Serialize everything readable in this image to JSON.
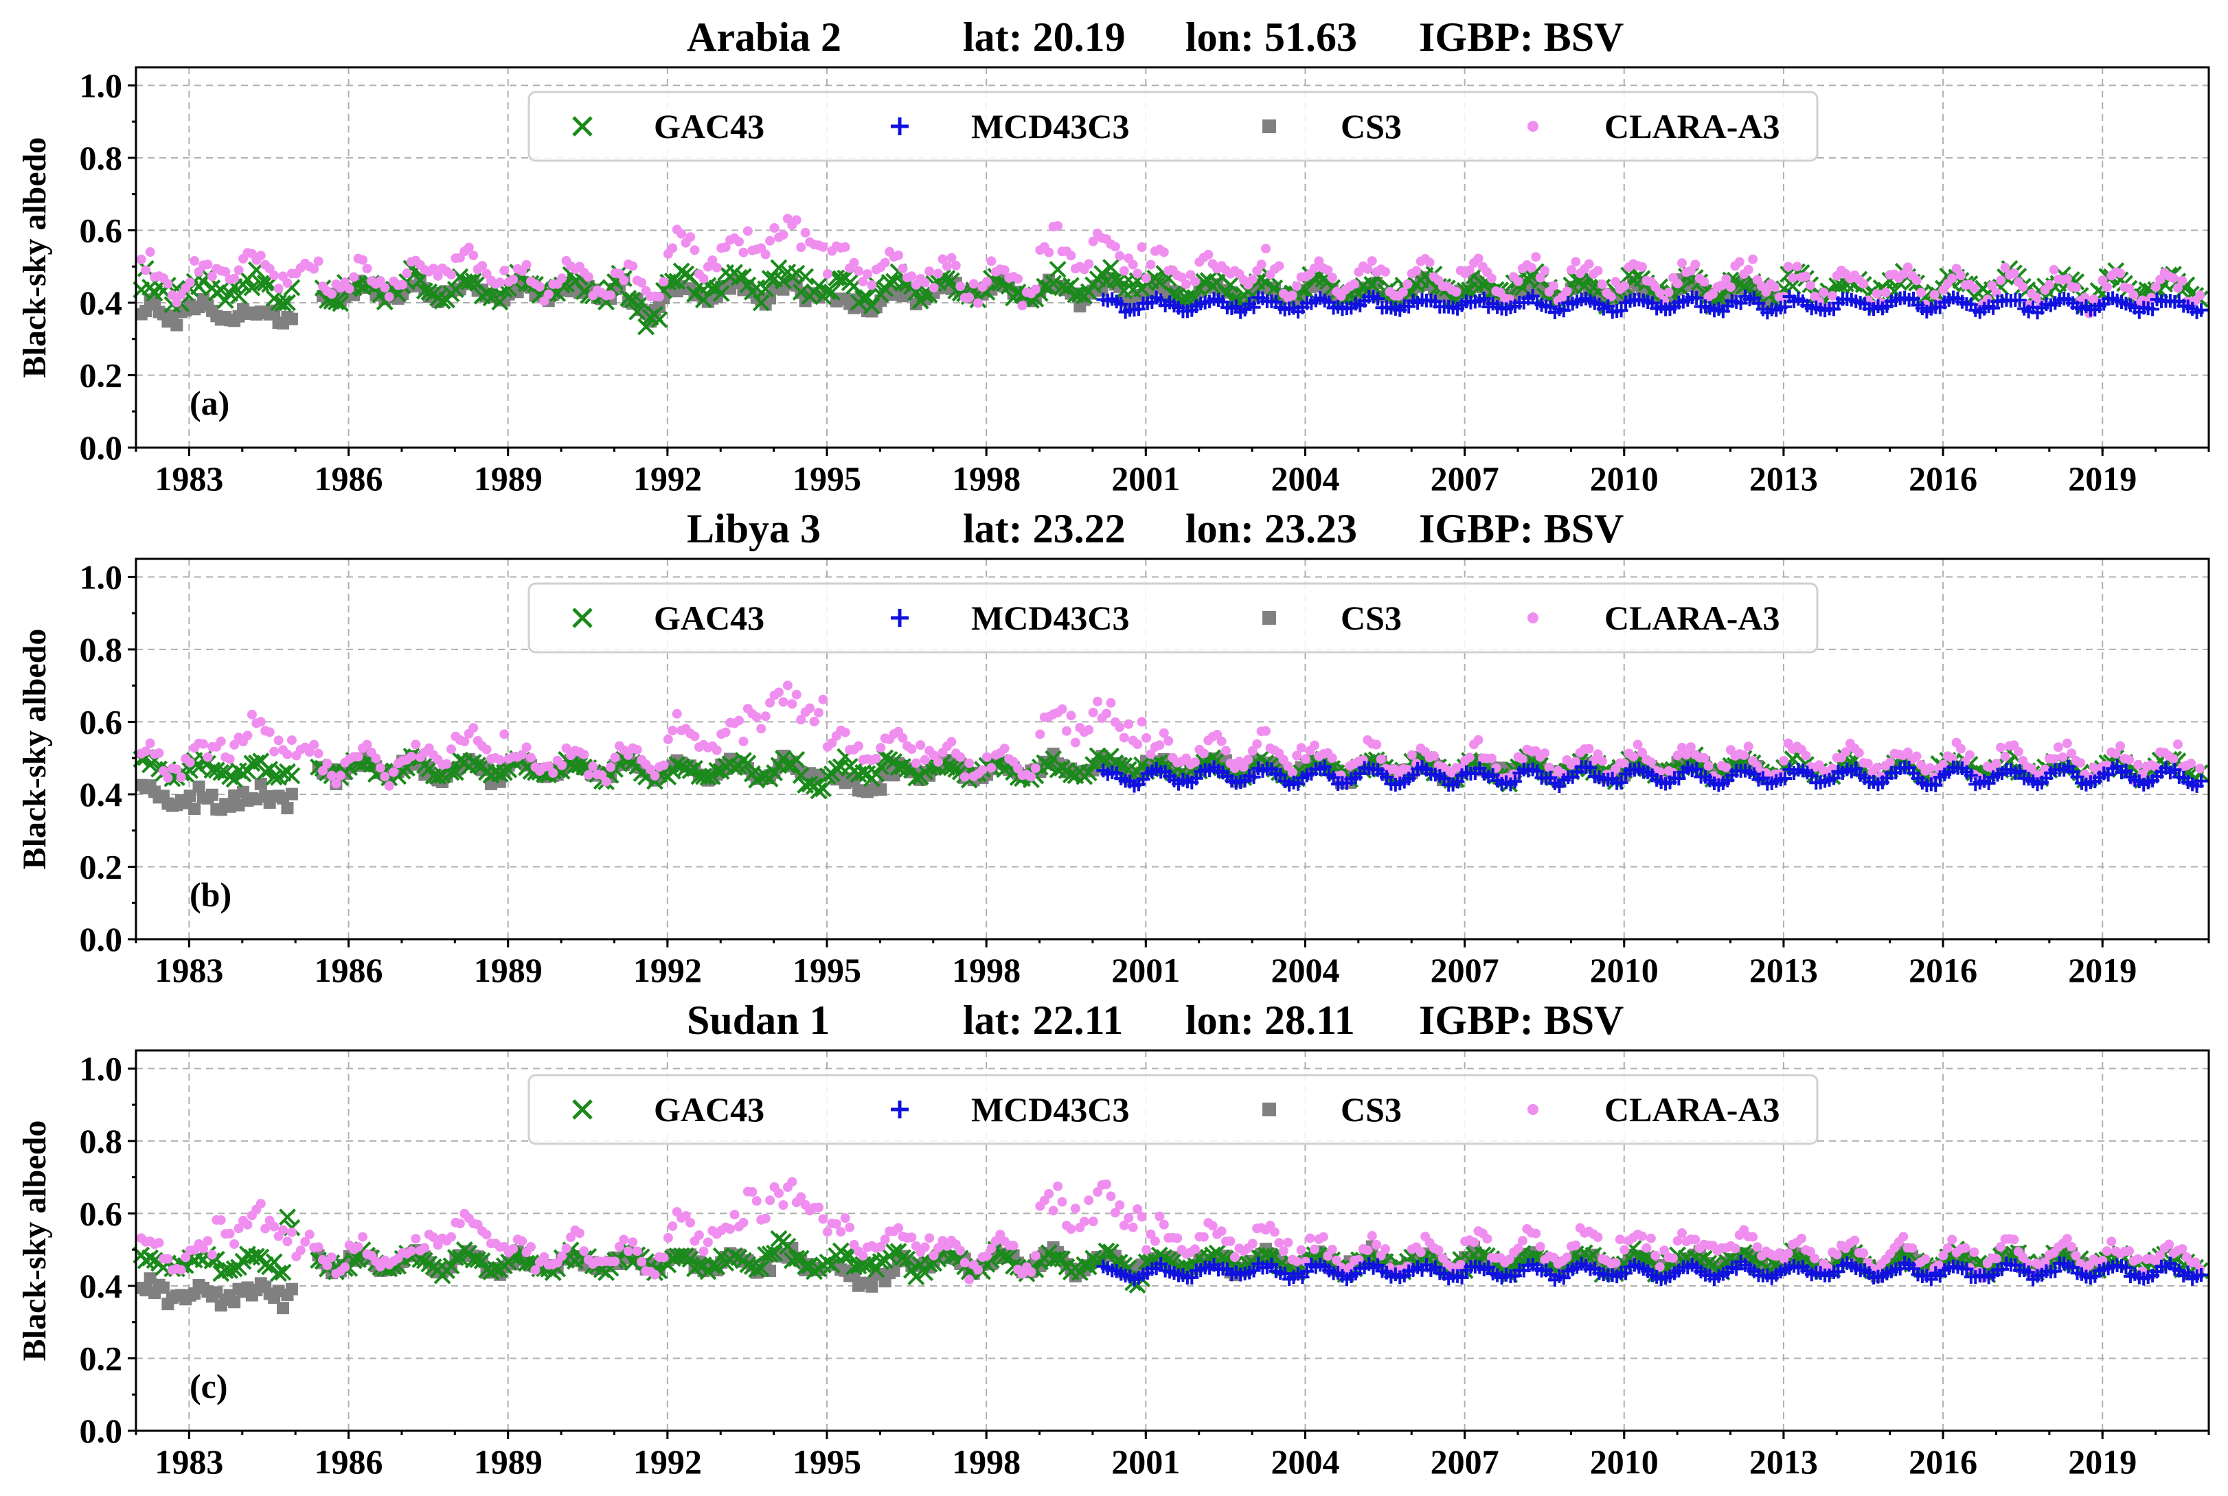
{
  "colors": {
    "GAC43": "#1a8a1a",
    "MCD43C3": "#1010e0",
    "CS3": "#808080",
    "CLARA-A3": "#f08ef0"
  },
  "legend_labels": [
    "GAC43",
    "MCD43C3",
    "CS3",
    "CLARA-A3"
  ],
  "chart_data": [
    {
      "type": "scatter",
      "panel_label": "(a)",
      "site": "Arabia 2",
      "lat": "lat: 20.19",
      "lon": "lon: 51.63",
      "igbp": "IGBP: BSV",
      "ylabel": "Black-sky albedo",
      "xlim": [
        1982.0,
        2021.0
      ],
      "ylim": [
        0.0,
        1.05
      ],
      "xticks": [
        1983,
        1986,
        1989,
        1992,
        1995,
        1998,
        2001,
        2004,
        2007,
        2010,
        2013,
        2016,
        2019
      ],
      "yticks": [
        "0.0",
        "0.2",
        "0.4",
        "0.6",
        "0.8",
        "1.0"
      ],
      "series": {
        "GAC43": {
          "marker": "x",
          "start": 1982.1,
          "end": 2020.9,
          "mean": 0.44,
          "amp": 0.025,
          "noise": 0.03,
          "gaps": [
            [
              1985.0,
              1985.5
            ]
          ],
          "bumps": [
            [
              1991.2,
              1991.9,
              -0.08
            ],
            [
              1992.0,
              1994.8,
              0.02
            ],
            [
              2000.3,
              2001.0,
              0.03
            ]
          ]
        },
        "MCD43C3": {
          "marker": "+",
          "start": 2000.2,
          "end": 2020.9,
          "mean": 0.395,
          "amp": 0.015,
          "noise": 0.012,
          "gaps": [],
          "bumps": []
        },
        "CS3": {
          "marker": "square",
          "start": 1982.1,
          "end": 2012.9,
          "mean": 0.43,
          "amp": 0.02,
          "noise": 0.02,
          "gaps": [
            [
              1985.0,
              1985.5
            ],
            [
              1994.9,
              1995.1
            ]
          ],
          "bumps": [
            [
              1982.1,
              1985.0,
              -0.075
            ],
            [
              1995.1,
              1996.5,
              -0.035
            ],
            [
              1991.2,
              1991.9,
              -0.05
            ]
          ]
        },
        "CLARA-A3": {
          "marker": "dot",
          "start": 1982.1,
          "end": 2020.9,
          "mean": 0.46,
          "amp": 0.04,
          "noise": 0.035,
          "gaps": [],
          "bumps": [
            [
              1983.5,
              1985.0,
              0.05
            ],
            [
              1987.5,
              1989.0,
              0.06
            ],
            [
              1992.0,
              1993.5,
              0.09
            ],
            [
              1993.5,
              1995.0,
              0.17
            ],
            [
              1995.0,
              1997.0,
              0.05
            ],
            [
              1999.0,
              2001.0,
              0.1
            ],
            [
              2001.0,
              2003.0,
              0.04
            ],
            [
              2003.0,
              2013.0,
              0.01
            ],
            [
              2013.0,
              2021.0,
              -0.02
            ]
          ]
        }
      }
    },
    {
      "type": "scatter",
      "panel_label": "(b)",
      "site": "Libya 3",
      "lat": "lat: 23.22",
      "lon": "lon: 23.23",
      "igbp": "IGBP: BSV",
      "ylabel": "Black-sky albedo",
      "xlim": [
        1982.0,
        2021.0
      ],
      "ylim": [
        0.0,
        1.05
      ],
      "xticks": [
        1983,
        1986,
        1989,
        1992,
        1995,
        1998,
        2001,
        2004,
        2007,
        2010,
        2013,
        2016,
        2019
      ],
      "yticks": [
        "0.0",
        "0.2",
        "0.4",
        "0.6",
        "0.8",
        "1.0"
      ],
      "series": {
        "GAC43": {
          "marker": "x",
          "start": 1982.1,
          "end": 2020.9,
          "mean": 0.47,
          "amp": 0.02,
          "noise": 0.02,
          "gaps": [
            [
              1985.0,
              1985.4
            ]
          ],
          "bumps": [
            [
              1994.5,
              1995.2,
              -0.03
            ],
            [
              2000.0,
              2001.0,
              0.02
            ]
          ]
        },
        "MCD43C3": {
          "marker": "+",
          "start": 2000.2,
          "end": 2020.9,
          "mean": 0.45,
          "amp": 0.02,
          "noise": 0.012,
          "gaps": [],
          "bumps": []
        },
        "CS3": {
          "marker": "square",
          "start": 1982.1,
          "end": 2012.9,
          "mean": 0.47,
          "amp": 0.02,
          "noise": 0.02,
          "gaps": [
            [
              1985.0,
              1985.4
            ],
            [
              1994.9,
              1995.1
            ]
          ],
          "bumps": [
            [
              1982.1,
              1985.0,
              -0.1
            ],
            [
              1995.1,
              1996.3,
              -0.05
            ]
          ]
        },
        "CLARA-A3": {
          "marker": "dot",
          "start": 1982.1,
          "end": 2020.9,
          "mean": 0.49,
          "amp": 0.035,
          "noise": 0.03,
          "gaps": [],
          "bumps": [
            [
              1983.5,
              1985.0,
              0.08
            ],
            [
              1987.5,
              1989.0,
              0.06
            ],
            [
              1992.0,
              1993.5,
              0.08
            ],
            [
              1993.5,
              1995.0,
              0.2
            ],
            [
              1995.0,
              1997.0,
              0.05
            ],
            [
              1999.0,
              2001.0,
              0.14
            ],
            [
              2001.0,
              2004.0,
              0.04
            ]
          ]
        }
      }
    },
    {
      "type": "scatter",
      "panel_label": "(c)",
      "site": "Sudan 1",
      "lat": "lat: 22.11",
      "lon": "lon: 28.11",
      "igbp": "IGBP: BSV",
      "ylabel": "Black-sky albedo",
      "xlim": [
        1982.0,
        2021.0
      ],
      "ylim": [
        0.0,
        1.05
      ],
      "xticks": [
        1983,
        1986,
        1989,
        1992,
        1995,
        1998,
        2001,
        2004,
        2007,
        2010,
        2013,
        2016,
        2019
      ],
      "yticks": [
        "0.0",
        "0.2",
        "0.4",
        "0.6",
        "0.8",
        "1.0"
      ],
      "series": {
        "GAC43": {
          "marker": "x",
          "start": 1982.1,
          "end": 2020.9,
          "mean": 0.465,
          "amp": 0.02,
          "noise": 0.02,
          "gaps": [
            [
              1985.0,
              1985.4
            ]
          ],
          "bumps": [
            [
              1984.8,
              1985.0,
              0.15
            ],
            [
              1993.8,
              1994.3,
              0.05
            ],
            [
              2000.7,
              2001.0,
              -0.05
            ]
          ]
        },
        "MCD43C3": {
          "marker": "+",
          "start": 2000.2,
          "end": 2020.9,
          "mean": 0.44,
          "amp": 0.015,
          "noise": 0.012,
          "gaps": [],
          "bumps": []
        },
        "CS3": {
          "marker": "square",
          "start": 1982.1,
          "end": 2018.9,
          "mean": 0.465,
          "amp": 0.02,
          "noise": 0.02,
          "gaps": [
            [
              1985.0,
              1985.4
            ],
            [
              1994.9,
              1995.1
            ]
          ],
          "bumps": [
            [
              1982.1,
              1985.0,
              -0.1
            ],
            [
              1995.1,
              1996.3,
              -0.05
            ]
          ]
        },
        "CLARA-A3": {
          "marker": "dot",
          "start": 1982.1,
          "end": 2020.9,
          "mean": 0.485,
          "amp": 0.035,
          "noise": 0.03,
          "gaps": [],
          "bumps": [
            [
              1983.5,
              1985.0,
              0.1
            ],
            [
              1987.5,
              1989.0,
              0.08
            ],
            [
              1992.0,
              1993.5,
              0.08
            ],
            [
              1993.5,
              1995.0,
              0.2
            ],
            [
              1995.0,
              1997.0,
              0.06
            ],
            [
              1999.0,
              2001.0,
              0.16
            ],
            [
              2001.0,
              2004.0,
              0.05
            ],
            [
              2007.0,
              2013.0,
              0.03
            ]
          ]
        }
      }
    }
  ]
}
